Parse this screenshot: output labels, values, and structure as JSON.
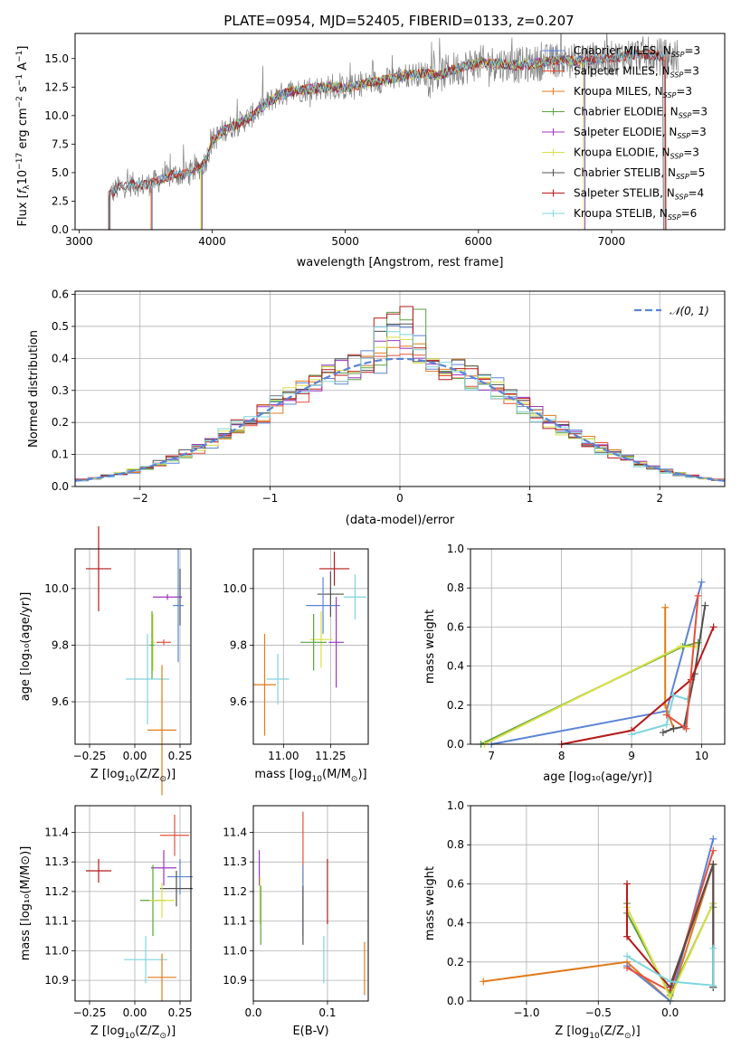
{
  "figure_title": "PLATE=0954, MJD=52405, FIBERID=0133, z=0.207",
  "colors": {
    "Chabrier MILES": "#5b84d6",
    "Salpeter MILES": "#e8503a",
    "Kroupa MILES": "#e07b1e",
    "Chabrier ELODIE": "#5aa040",
    "Salpeter ELODIE": "#9a36c0",
    "Kroupa ELODIE": "#d9e048",
    "Chabrier STELIB": "#505050",
    "Salpeter STELIB": "#b51a1a",
    "Kroupa STELIB": "#7fd4de",
    "data": "#808080",
    "gauss": "#5b84d6"
  },
  "chart_data": [
    {
      "id": "spectrum",
      "type": "line",
      "title": "PLATE=0954, MJD=52405, FIBERID=0133, z=0.207",
      "xlabel": "wavelength [Angstrom, rest frame]",
      "ylabel_main": "Flux [",
      "ylabel_f": "f",
      "ylabel_lambda": "λ",
      "ylabel_10": "10",
      "ylabel_exp1": "−17",
      "ylabel_units": " erg cm",
      "ylabel_exp2": "−2",
      "ylabel_s": " s",
      "ylabel_exp3": "−1",
      "ylabel_A": " A",
      "ylabel_exp4": "−1",
      "ylabel_end": "]",
      "xlim": [
        2970,
        7850
      ],
      "ylim": [
        0,
        17.2
      ],
      "xticks": [
        3000,
        4000,
        5000,
        6000,
        7000
      ],
      "yticks": [
        0.0,
        2.5,
        5.0,
        7.5,
        10.0,
        12.5,
        15.0
      ],
      "ytick_labels": [
        "0.0",
        "2.5",
        "5.0",
        "7.5",
        "10.0",
        "12.5",
        "15.0"
      ],
      "grid": false,
      "legend_position": "top-right",
      "legend": [
        {
          "pre": "Chabrier MILES, N",
          "sub": "SSP",
          "post": "=3"
        },
        {
          "pre": "Salpeter MILES, N",
          "sub": "SSP",
          "post": "=3"
        },
        {
          "pre": "Kroupa MILES, N",
          "sub": "SSP",
          "post": "=3"
        },
        {
          "pre": "Chabrier ELODIE, N",
          "sub": "SSP",
          "post": "=3"
        },
        {
          "pre": "Salpeter ELODIE, N",
          "sub": "SSP",
          "post": "=3"
        },
        {
          "pre": "Kroupa ELODIE, N",
          "sub": "SSP",
          "post": "=3"
        },
        {
          "pre": "Chabrier STELIB, N",
          "sub": "SSP",
          "post": "=5"
        },
        {
          "pre": "Salpeter STELIB, N",
          "sub": "SSP",
          "post": "=4"
        },
        {
          "pre": "Kroupa STELIB, N",
          "sub": "SSP",
          "post": "=6"
        }
      ],
      "continuum": {
        "wavelength": [
          3220,
          3300,
          3400,
          3500,
          3600,
          3700,
          3800,
          3900,
          3950,
          4000,
          4100,
          4200,
          4300,
          4400,
          4500,
          4600,
          4700,
          4800,
          4900,
          5000,
          5100,
          5200,
          5300,
          5400,
          5500,
          5600,
          5700,
          5800,
          5900,
          6000,
          6100,
          6200,
          6300,
          6400,
          6500,
          6600,
          6700,
          6800,
          6900,
          7000,
          7100,
          7200,
          7300,
          7400
        ],
        "flux": [
          3.0,
          3.7,
          4.0,
          3.9,
          4.3,
          4.8,
          4.9,
          5.4,
          6.0,
          7.8,
          8.8,
          9.3,
          10.0,
          11.0,
          11.8,
          12.1,
          12.3,
          12.4,
          12.5,
          12.4,
          12.7,
          12.9,
          13.1,
          13.4,
          13.6,
          13.7,
          13.5,
          14.0,
          14.3,
          14.6,
          14.6,
          14.5,
          14.4,
          14.5,
          14.7,
          14.9,
          14.8,
          14.8,
          15.0,
          15.0,
          15.2,
          15.4,
          15.3,
          15.2
        ]
      }
    },
    {
      "id": "residuals",
      "type": "line",
      "xlabel": "(data-model)/error",
      "ylabel": "Normed distribution",
      "xlim": [
        -2.5,
        2.5
      ],
      "ylim": [
        0,
        0.61
      ],
      "xticks": [
        -2,
        -1,
        0,
        1,
        2
      ],
      "xtick_labels": [
        "−2",
        "−1",
        "0",
        "1",
        "2"
      ],
      "yticks": [
        0.0,
        0.1,
        0.2,
        0.3,
        0.4,
        0.5,
        0.6
      ],
      "ytick_labels": [
        "0.0",
        "0.1",
        "0.2",
        "0.3",
        "0.4",
        "0.5",
        "0.6"
      ],
      "grid": true,
      "legend_position": "top-right",
      "legend_label": "𝒩(0, 1)",
      "gauss_peak": 0.3989,
      "hist_bin_width": 0.1,
      "hist_peaks": [
        0.51,
        0.45,
        0.47,
        0.56,
        0.46,
        0.48,
        0.52,
        0.58,
        0.51
      ]
    },
    {
      "id": "age-vs-Z",
      "type": "scatter",
      "xlabel_pre": "Z [log",
      "xlabel_sub": "10",
      "xlabel_post": "(Z/Z",
      "xlabel_sub2": "⊙",
      "xlabel_end": ")]",
      "ylabel": "age  [log₁₀(age/yr)]",
      "xlim": [
        -0.33,
        0.31
      ],
      "ylim": [
        9.45,
        10.14
      ],
      "xticks": [
        -0.25,
        0.0,
        0.25
      ],
      "xtick_labels": [
        "−0.25",
        "0.00",
        "0.25"
      ],
      "yticks": [
        9.6,
        9.8,
        10.0
      ],
      "ytick_labels": [
        "9.6",
        "9.8",
        "10.0"
      ],
      "grid": true,
      "errorbars": [
        {
          "series": "Salpeter STELIB",
          "x": -0.2,
          "xerr": 0.07,
          "y": 10.07,
          "yerr": 0.15
        },
        {
          "series": "Chabrier STELIB",
          "x": 0.25,
          "xerr": 0.01,
          "y": 9.97,
          "yerr": 0.1
        },
        {
          "series": "Salpeter ELODIE",
          "x": 0.18,
          "xerr": 0.08,
          "y": 9.97,
          "yerr": 0.01
        },
        {
          "series": "Chabrier MILES",
          "x": 0.24,
          "xerr": 0.03,
          "y": 9.94,
          "yerr": 0.2
        },
        {
          "series": "Kroupa ELODIE",
          "x": 0.1,
          "xerr": 0.01,
          "y": 9.81,
          "yerr": 0.1
        },
        {
          "series": "Chabrier ELODIE",
          "x": 0.095,
          "xerr": 0.012,
          "y": 9.8,
          "yerr": 0.12
        },
        {
          "series": "Salpeter MILES",
          "x": 0.16,
          "xerr": 0.04,
          "y": 9.81,
          "yerr": 0.01
        },
        {
          "series": "Kroupa STELIB",
          "x": 0.07,
          "xerr": 0.12,
          "y": 9.68,
          "yerr": 0.16
        },
        {
          "series": "Kroupa MILES",
          "x": 0.15,
          "xerr": 0.08,
          "y": 9.5,
          "yerr": 0.23
        }
      ]
    },
    {
      "id": "age-vs-mass",
      "type": "scatter",
      "xlabel_pre": "mass [log",
      "xlabel_sub": "10",
      "xlabel_post": "(M/M",
      "xlabel_sub2": "⊙",
      "xlabel_end": ")]",
      "xlim": [
        10.84,
        11.45
      ],
      "ylim": [
        9.45,
        10.14
      ],
      "xticks": [
        11.0,
        11.25
      ],
      "xtick_labels": [
        "11.00",
        "11.25"
      ],
      "yticks": [
        9.6,
        9.8,
        10.0
      ],
      "ytick_labels": [
        "9.6",
        "9.8",
        "10.0"
      ],
      "grid": true,
      "errorbars": [
        {
          "series": "Salpeter STELIB",
          "x": 11.27,
          "xerr": 0.08,
          "y": 10.07,
          "yerr": 0.06
        },
        {
          "series": "Kroupa STELIB",
          "x": 11.38,
          "xerr": 0.06,
          "y": 9.97,
          "yerr": 0.08
        },
        {
          "series": "Chabrier STELIB",
          "x": 11.25,
          "xerr": 0.07,
          "y": 9.98,
          "yerr": 0.08
        },
        {
          "series": "Chabrier MILES",
          "x": 11.21,
          "xerr": 0.09,
          "y": 9.94,
          "yerr": 0.1
        },
        {
          "series": "Kroupa ELODIE",
          "x": 11.2,
          "xerr": 0.06,
          "y": 9.82,
          "yerr": 0.1
        },
        {
          "series": "Chabrier ELODIE",
          "x": 11.16,
          "xerr": 0.07,
          "y": 9.81,
          "yerr": 0.1
        },
        {
          "series": "Salpeter ELODIE",
          "x": 11.28,
          "xerr": 0.04,
          "y": 9.81,
          "yerr": 0.16
        },
        {
          "series": "Kroupa MILES",
          "x": 10.9,
          "xerr": 0.06,
          "y": 9.66,
          "yerr": 0.18
        },
        {
          "series": "Kroupa STELIB",
          "x": 10.97,
          "xerr": 0.06,
          "y": 9.68,
          "yerr": 0.09
        }
      ]
    },
    {
      "id": "weight-vs-age",
      "type": "line",
      "xlabel": "age  [log₁₀(age/yr)]",
      "ylabel": "mass weight",
      "xlim": [
        6.7,
        10.33
      ],
      "ylim": [
        0,
        1.0
      ],
      "xticks": [
        7,
        8,
        9,
        10
      ],
      "xtick_labels": [
        "7",
        "8",
        "9",
        "10"
      ],
      "yticks": [
        0.0,
        0.2,
        0.4,
        0.6,
        0.8,
        1.0
      ],
      "ytick_labels": [
        "0.0",
        "0.2",
        "0.4",
        "0.6",
        "0.8",
        "1.0"
      ],
      "grid": true,
      "series": [
        {
          "name": "Chabrier MILES",
          "x": [
            7.0,
            9.5,
            10.0
          ],
          "y": [
            0.0,
            0.17,
            0.83
          ]
        },
        {
          "name": "Kroupa MILES",
          "x": [
            9.48,
            9.48,
            9.6
          ],
          "y": [
            0.7,
            0.2,
            0.08
          ]
        },
        {
          "name": "Chabrier ELODIE",
          "x": [
            6.85,
            9.73,
            9.95
          ],
          "y": [
            0.0,
            0.5,
            0.52
          ]
        },
        {
          "name": "Kroupa ELODIE",
          "x": [
            6.9,
            9.7,
            9.92
          ],
          "y": [
            0.0,
            0.5,
            0.5
          ]
        },
        {
          "name": "Chabrier STELIB",
          "x": [
            9.45,
            9.6,
            9.75,
            9.9,
            10.05
          ],
          "y": [
            0.06,
            0.08,
            0.09,
            0.36,
            0.71
          ]
        },
        {
          "name": "Salpeter STELIB",
          "x": [
            8.0,
            9.0,
            9.85,
            10.17
          ],
          "y": [
            0.0,
            0.07,
            0.33,
            0.6
          ]
        },
        {
          "name": "Kroupa STELIB",
          "x": [
            9.0,
            9.5,
            9.6,
            9.8
          ],
          "y": [
            0.05,
            0.1,
            0.25,
            0.23
          ]
        },
        {
          "name": "Salpeter MILES",
          "x": [
            9.5,
            9.78,
            9.95
          ],
          "y": [
            0.15,
            0.08,
            0.76
          ]
        }
      ]
    },
    {
      "id": "mass-vs-Z",
      "type": "scatter",
      "xlabel_pre": "Z [log",
      "xlabel_sub": "10",
      "xlabel_post": "(Z/Z",
      "xlabel_sub2": "⊙",
      "xlabel_end": ")]",
      "ylabel": "mass [log₁₀(M/M⊙)]",
      "xlim": [
        -0.33,
        0.31
      ],
      "ylim": [
        10.83,
        11.49
      ],
      "xticks": [
        -0.25,
        0.0,
        0.25
      ],
      "xtick_labels": [
        "−0.25",
        "0.00",
        "0.25"
      ],
      "yticks": [
        10.9,
        11.0,
        11.1,
        11.2,
        11.3,
        11.4
      ],
      "ytick_labels": [
        "10.9",
        "11.0",
        "11.1",
        "11.2",
        "11.3",
        "11.4"
      ],
      "grid": true,
      "errorbars": [
        {
          "series": "Salpeter STELIB",
          "x": -0.2,
          "xerr": 0.07,
          "y": 11.27,
          "yerr": 0.04
        },
        {
          "series": "Salpeter MILES",
          "x": 0.22,
          "xerr": 0.08,
          "y": 11.39,
          "yerr": 0.07
        },
        {
          "series": "Salpeter ELODIE",
          "x": 0.16,
          "xerr": 0.07,
          "y": 11.28,
          "yerr": 0.06
        },
        {
          "series": "Chabrier MILES",
          "x": 0.25,
          "xerr": 0.07,
          "y": 11.25,
          "yerr": 0.06
        },
        {
          "series": "Chabrier STELIB",
          "x": 0.23,
          "xerr": 0.09,
          "y": 11.21,
          "yerr": 0.06
        },
        {
          "series": "Chabrier ELODIE",
          "x": 0.1,
          "xerr": 0.07,
          "y": 11.17,
          "yerr": 0.12
        },
        {
          "series": "Kroupa ELODIE",
          "x": 0.15,
          "xerr": 0.07,
          "y": 11.17,
          "yerr": 0.06
        },
        {
          "series": "Kroupa STELIB",
          "x": 0.06,
          "xerr": 0.12,
          "y": 10.97,
          "yerr": 0.08
        },
        {
          "series": "Kroupa MILES",
          "x": 0.15,
          "xerr": 0.08,
          "y": 10.91,
          "yerr": 0.08
        }
      ]
    },
    {
      "id": "mass-vs-ebv",
      "type": "scatter",
      "xlabel": "E(B-V)",
      "xlim": [
        0.0,
        0.155
      ],
      "ylim": [
        10.83,
        11.49
      ],
      "xticks": [
        0.0,
        0.1
      ],
      "xtick_labels": [
        "0.0",
        "0.1"
      ],
      "yticks": [
        10.9,
        11.0,
        11.1,
        11.2,
        11.3,
        11.4
      ],
      "ytick_labels": [
        "10.9",
        "11.0",
        "11.1",
        "11.2",
        "11.3",
        "11.4"
      ],
      "grid": true,
      "errorbars": [
        {
          "series": "Salpeter ELODIE",
          "x": 0.008,
          "xerr": 0,
          "y": 11.28,
          "yerr": 0.06
        },
        {
          "series": "Kroupa ELODIE",
          "x": 0.009,
          "xerr": 0,
          "y": 11.17,
          "yerr": 0.08
        },
        {
          "series": "Chabrier ELODIE",
          "x": 0.01,
          "xerr": 0,
          "y": 11.12,
          "yerr": 0.1
        },
        {
          "series": "Salpeter MILES",
          "x": 0.067,
          "xerr": 0,
          "y": 11.35,
          "yerr": 0.12
        },
        {
          "series": "Chabrier MILES",
          "x": 0.067,
          "xerr": 0,
          "y": 11.17,
          "yerr": 0.12
        },
        {
          "series": "Chabrier STELIB",
          "x": 0.067,
          "xerr": 0,
          "y": 11.12,
          "yerr": 0.1
        },
        {
          "series": "Salpeter STELIB",
          "x": 0.1,
          "xerr": 0,
          "y": 11.2,
          "yerr": 0.11
        },
        {
          "series": "Kroupa STELIB",
          "x": 0.095,
          "xerr": 0,
          "y": 10.97,
          "yerr": 0.08
        },
        {
          "series": "Kroupa MILES",
          "x": 0.15,
          "xerr": 0,
          "y": 10.94,
          "yerr": 0.09
        }
      ]
    },
    {
      "id": "weight-vs-Z",
      "type": "line",
      "xlabel_pre": "Z [log",
      "xlabel_sub": "10",
      "xlabel_post": "(Z/Z",
      "xlabel_sub2": "⊙",
      "xlabel_end": ")]",
      "ylabel": "mass weight",
      "xlim": [
        -1.39,
        0.38
      ],
      "ylim": [
        0,
        1.0
      ],
      "xticks": [
        -1.0,
        -0.5,
        0.0
      ],
      "xtick_labels": [
        "−1.0",
        "−0.5",
        "0.0"
      ],
      "yticks": [
        0.0,
        0.2,
        0.4,
        0.6,
        0.8,
        1.0
      ],
      "ytick_labels": [
        "0.0",
        "0.2",
        "0.4",
        "0.6",
        "0.8",
        "1.0"
      ],
      "grid": true,
      "series": [
        {
          "name": "Kroupa MILES",
          "x": [
            -1.3,
            -0.3,
            0.0,
            0.3
          ],
          "y": [
            0.1,
            0.2,
            0.0,
            0.7
          ]
        },
        {
          "name": "Chabrier MILES",
          "x": [
            -0.3,
            0.0,
            0.3
          ],
          "y": [
            0.18,
            0.0,
            0.83
          ]
        },
        {
          "name": "Salpeter MILES",
          "x": [
            -0.3,
            0.0,
            0.3
          ],
          "y": [
            0.17,
            0.05,
            0.77
          ]
        },
        {
          "name": "Chabrier ELODIE",
          "x": [
            -0.3,
            -0.3,
            0.0,
            0.3,
            0.3
          ],
          "y": [
            0.5,
            0.45,
            0.03,
            0.5,
            0.48
          ]
        },
        {
          "name": "Kroupa ELODIE",
          "x": [
            -0.3,
            0.0,
            0.3
          ],
          "y": [
            0.48,
            0.02,
            0.5
          ]
        },
        {
          "name": "Salpeter STELIB",
          "x": [
            -0.3,
            -0.3,
            0.0,
            0.3,
            0.3
          ],
          "y": [
            0.6,
            0.33,
            0.07,
            0.7,
            0.07
          ]
        },
        {
          "name": "Chabrier STELIB",
          "x": [
            0.0,
            0.3,
            0.3
          ],
          "y": [
            0.08,
            0.7,
            0.07
          ]
        },
        {
          "name": "Kroupa STELIB",
          "x": [
            -0.3,
            0.0,
            0.3,
            0.3
          ],
          "y": [
            0.23,
            0.1,
            0.08,
            0.27
          ]
        }
      ]
    }
  ]
}
